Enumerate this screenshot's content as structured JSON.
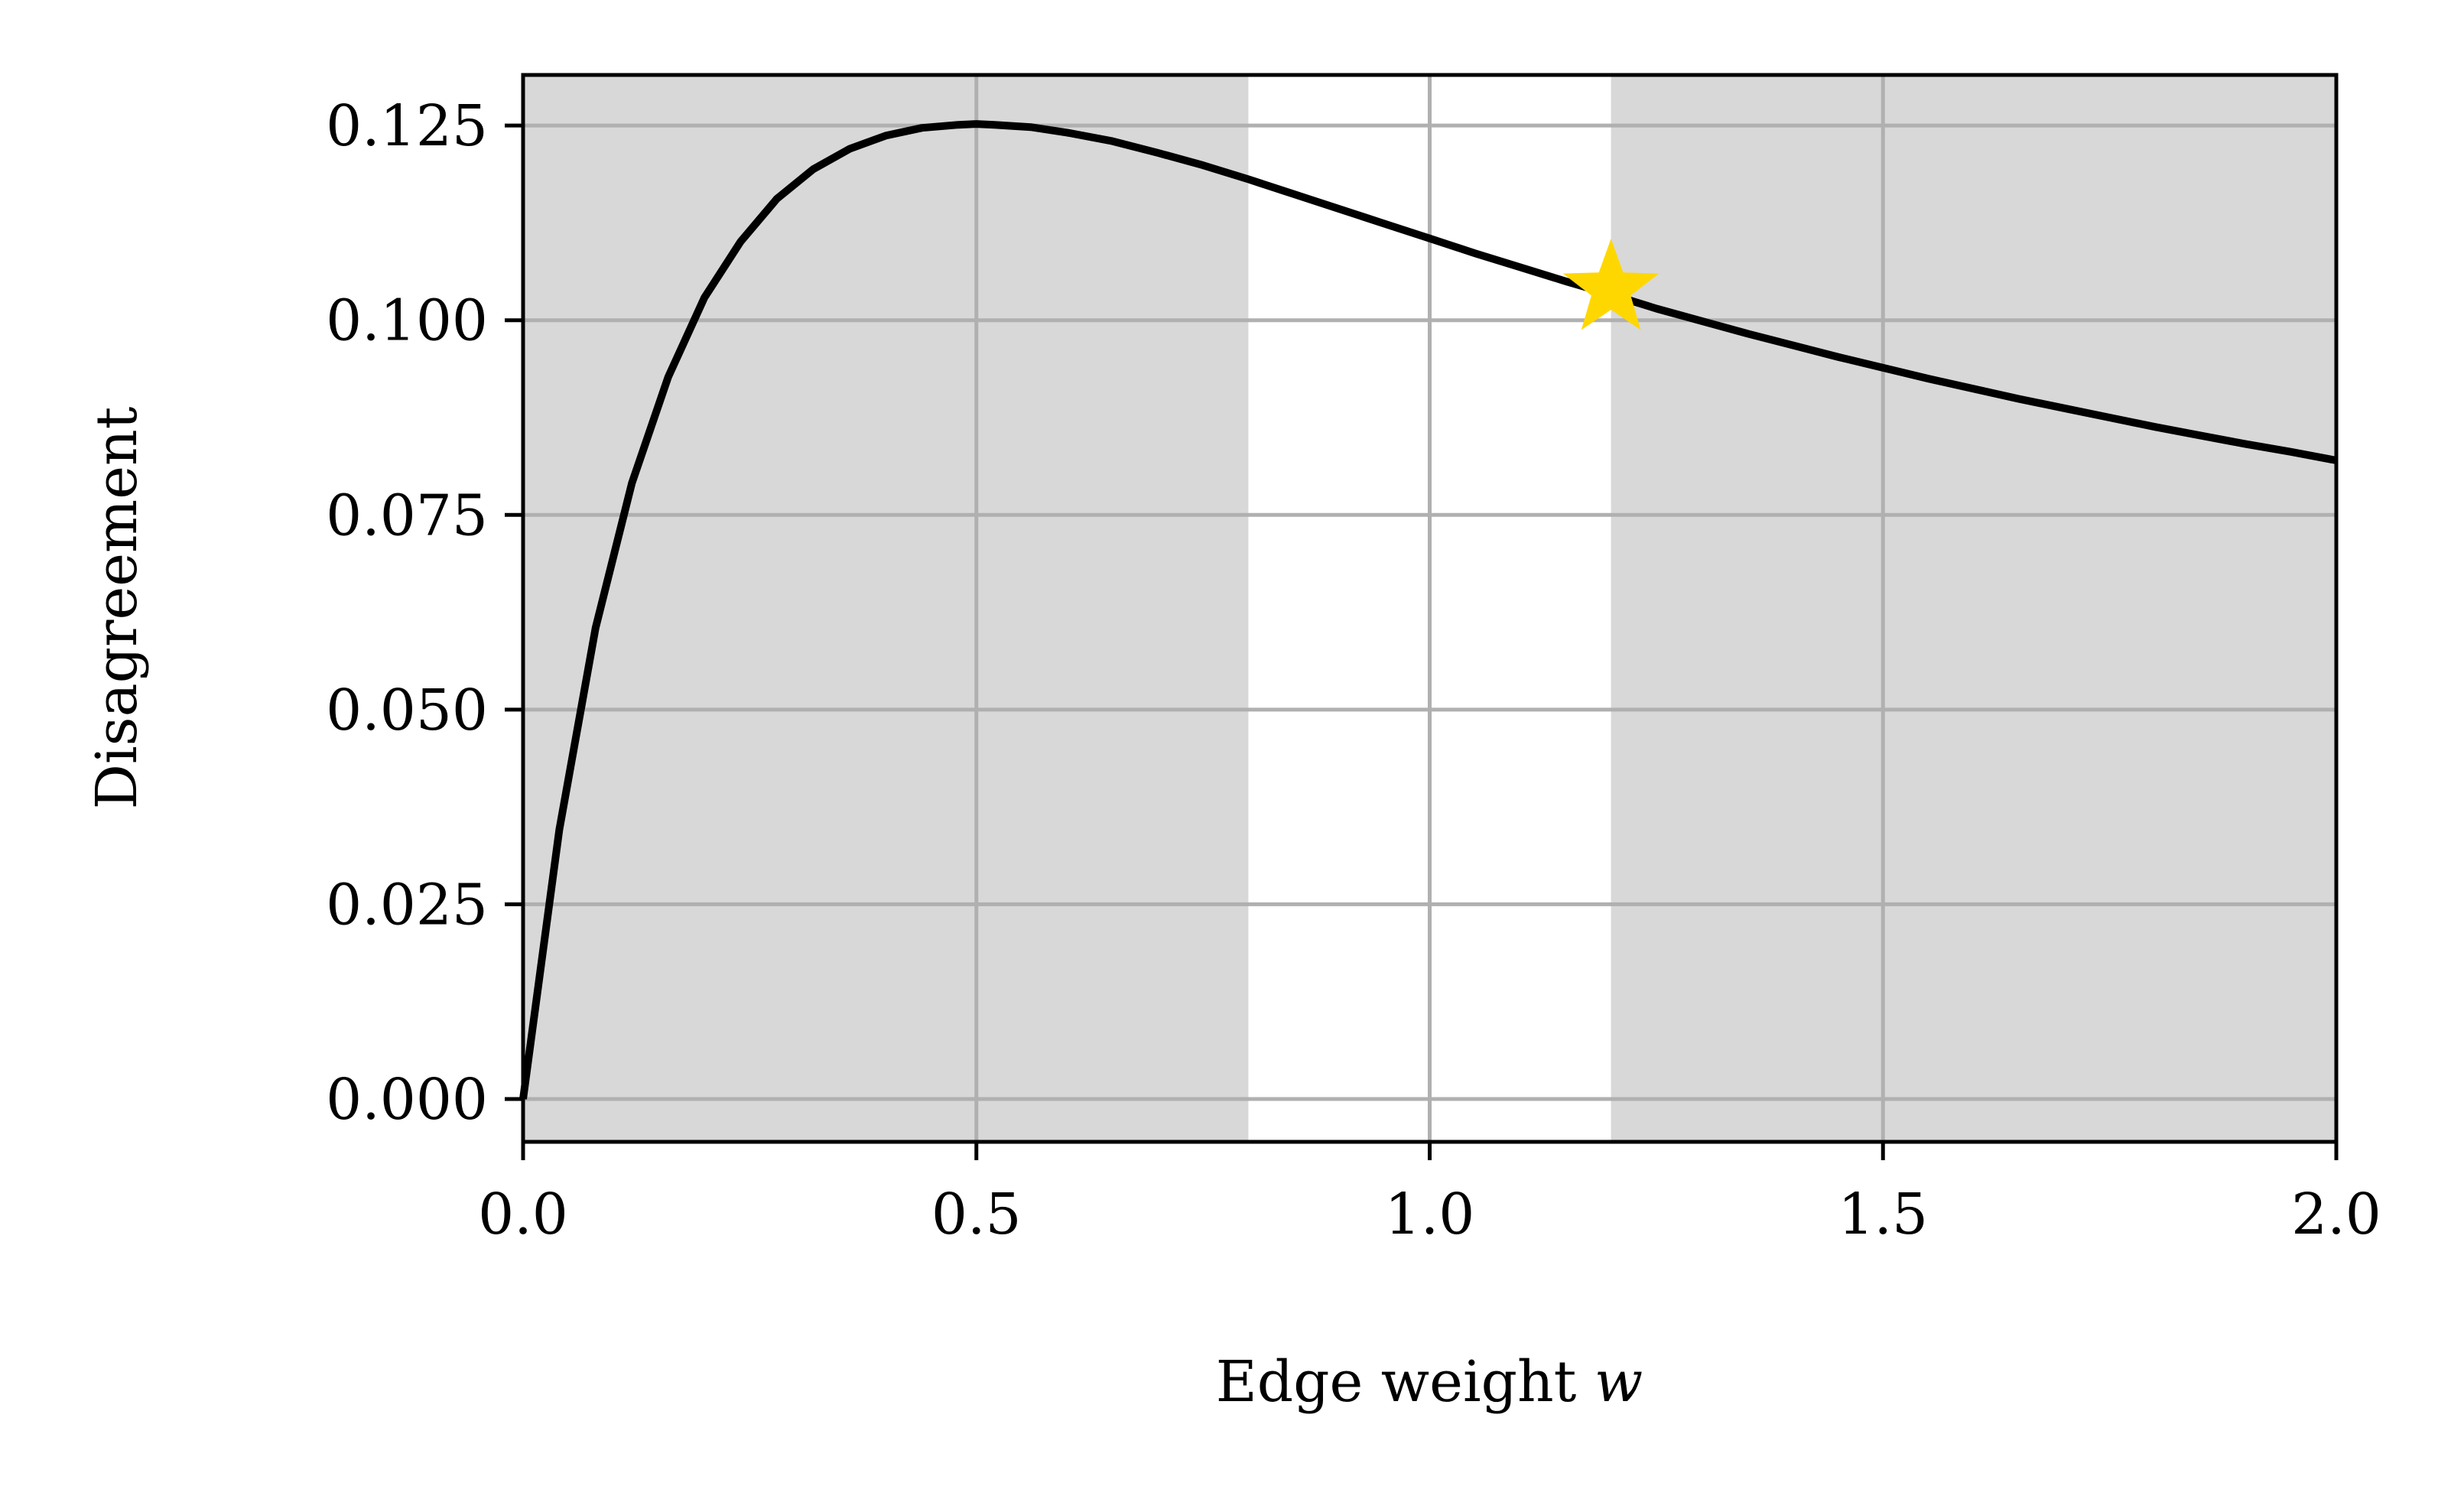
{
  "chart_data": {
    "type": "line",
    "xlabel": "Edge weight",
    "xlabel_var": "w",
    "ylabel": "Disagreement",
    "xlim": [
      0.0,
      2.0
    ],
    "ylim": [
      -0.0055,
      0.1315
    ],
    "xticks": [
      0.0,
      0.5,
      1.0,
      1.5,
      2.0
    ],
    "xtick_labels": [
      "0.0",
      "0.5",
      "1.0",
      "1.5",
      "2.0"
    ],
    "yticks": [
      0.0,
      0.025,
      0.05,
      0.075,
      0.1,
      0.125
    ],
    "ytick_labels": [
      "0.000",
      "0.025",
      "0.050",
      "0.075",
      "0.100",
      "0.125"
    ],
    "grid": true,
    "legend": "none",
    "shaded_regions": [
      {
        "x_start": 0.0,
        "x_end": 0.8
      },
      {
        "x_start": 1.2,
        "x_end": 2.0
      }
    ],
    "series": [
      {
        "x": [
          0.0,
          0.04,
          0.08,
          0.12,
          0.16,
          0.2,
          0.24,
          0.28,
          0.32,
          0.36,
          0.4,
          0.44,
          0.48,
          0.5,
          0.52,
          0.56,
          0.6,
          0.65,
          0.7,
          0.75,
          0.8,
          0.85,
          0.9,
          0.95,
          1.0,
          1.05,
          1.1,
          1.15,
          1.2,
          1.25,
          1.3,
          1.35,
          1.4,
          1.45,
          1.5,
          1.55,
          1.6,
          1.65,
          1.7,
          1.75,
          1.8,
          1.85,
          1.9,
          1.95,
          2.0
        ],
        "y": [
          0.0,
          0.0346,
          0.0605,
          0.0791,
          0.0927,
          0.1029,
          0.1101,
          0.1156,
          0.1194,
          0.122,
          0.1237,
          0.1247,
          0.1251,
          0.1252,
          0.1251,
          0.1248,
          0.1241,
          0.123,
          0.1215,
          0.1199,
          0.1181,
          0.1162,
          0.1143,
          0.1124,
          0.1105,
          0.1086,
          0.1068,
          0.105,
          0.1033,
          0.1015,
          0.0999,
          0.0983,
          0.0968,
          0.0953,
          0.0939,
          0.0925,
          0.0912,
          0.0899,
          0.0887,
          0.0875,
          0.0863,
          0.0852,
          0.0841,
          0.0831,
          0.082
        ]
      }
    ],
    "markers": [
      {
        "x": 1.2,
        "y": 0.104,
        "shape": "star"
      }
    ],
    "colors": {
      "line": "#000000",
      "shade": "#d8d8d8",
      "grid": "#b0b0b0",
      "star": "#ffd700"
    }
  }
}
